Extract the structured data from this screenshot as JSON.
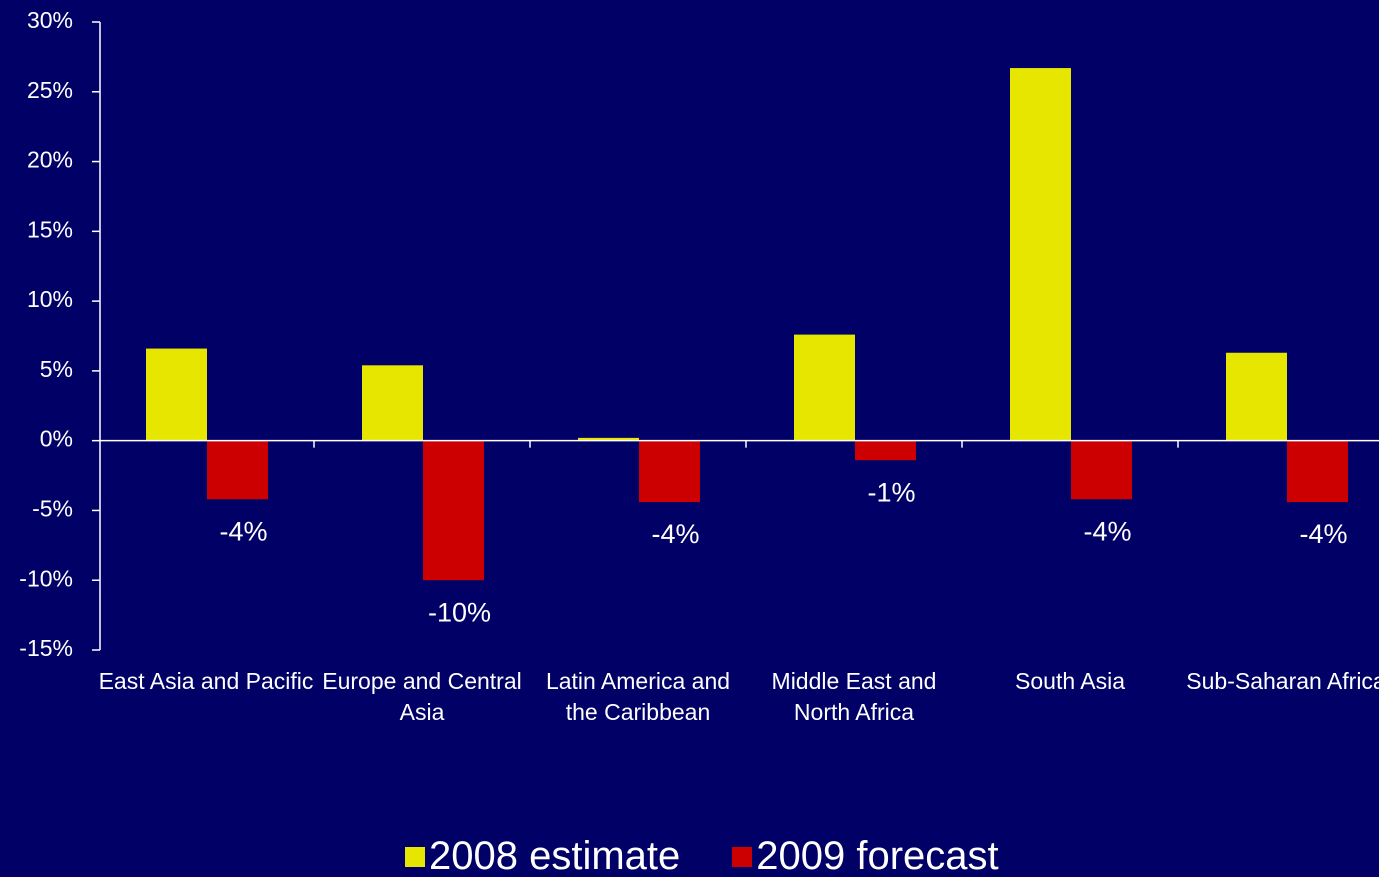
{
  "chart_data": {
    "type": "bar",
    "categories": [
      "East Asia and Pacific",
      "Europe and Central Asia",
      "Latin America and the Caribbean",
      "Middle East and North Africa",
      "South Asia",
      "Sub-Saharan Africa"
    ],
    "series": [
      {
        "name": "2008 estimate",
        "color": "#e6e600",
        "values": [
          6.6,
          5.4,
          0.2,
          7.6,
          26.7,
          6.3
        ]
      },
      {
        "name": "2009 forecast",
        "color": "#cc0000",
        "values": [
          -4.2,
          -10.0,
          -4.4,
          -1.4,
          -4.2,
          -4.4
        ],
        "value_labels": [
          "-4%",
          "-10%",
          "-4%",
          "-1%",
          "-4%",
          "-4%"
        ]
      }
    ],
    "ylim": [
      -15,
      30
    ],
    "yticks": [
      {
        "value": -15,
        "label": "-15%"
      },
      {
        "value": -10,
        "label": "-10%"
      },
      {
        "value": -5,
        "label": "-5%"
      },
      {
        "value": 0,
        "label": "0%"
      },
      {
        "value": 5,
        "label": "5%"
      },
      {
        "value": 10,
        "label": "10%"
      },
      {
        "value": 15,
        "label": "15%"
      },
      {
        "value": 20,
        "label": "20%"
      },
      {
        "value": 25,
        "label": "25%"
      },
      {
        "value": 30,
        "label": "30%"
      }
    ]
  }
}
